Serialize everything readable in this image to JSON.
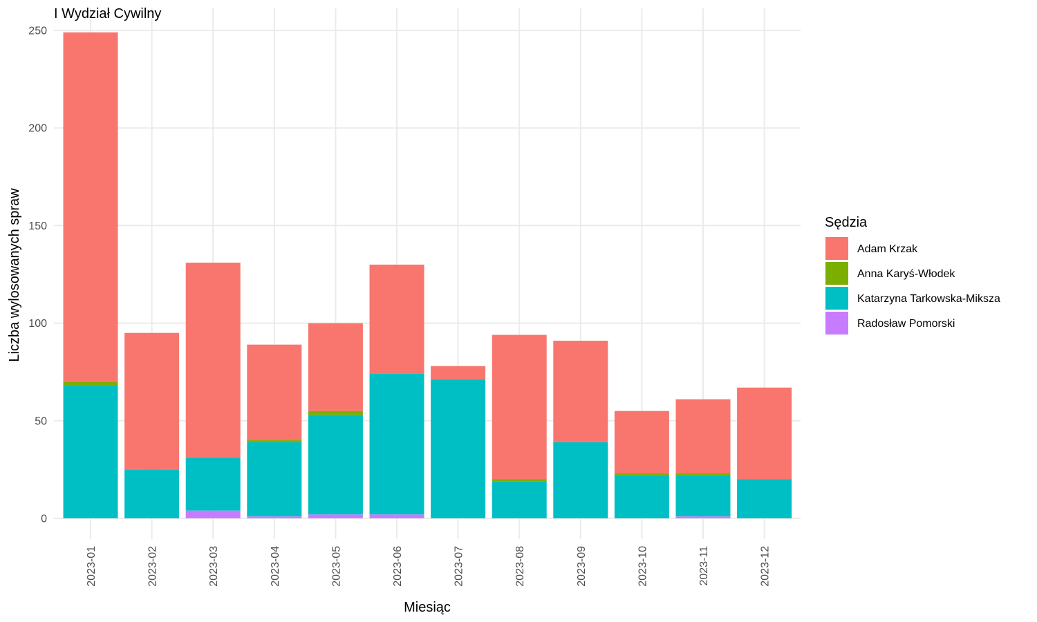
{
  "chart_data": {
    "type": "bar",
    "stacked": true,
    "title": "I Wydział Cywilny",
    "xlabel": "Miesiąc",
    "ylabel": "Liczba wylosowanych spraw",
    "ylim": [
      0,
      250
    ],
    "y_ticks": [
      "0",
      "50",
      "100",
      "150",
      "200",
      "250"
    ],
    "grid": true,
    "legend": {
      "title": "Sędzia",
      "position": "right"
    },
    "categories": [
      "2023-01",
      "2023-02",
      "2023-03",
      "2023-04",
      "2023-05",
      "2023-06",
      "2023-07",
      "2023-08",
      "2023-09",
      "2023-10",
      "2023-11",
      "2023-12"
    ],
    "series": [
      {
        "name": "Radosław Pomorski",
        "color": "#C77CFF",
        "values": [
          0,
          0,
          4,
          1,
          2,
          2,
          0,
          0,
          0,
          0,
          1,
          0
        ]
      },
      {
        "name": "Katarzyna Tarkowska-Miksza",
        "color": "#00BFC4",
        "values": [
          68,
          25,
          27,
          38,
          51,
          72,
          71,
          19,
          39,
          22,
          21,
          20
        ]
      },
      {
        "name": "Anna Karyś-Włodek",
        "color": "#7CAE00",
        "values": [
          2,
          0,
          0,
          1,
          2,
          0,
          0,
          1,
          0,
          1,
          1,
          0
        ]
      },
      {
        "name": "Adam Krzak",
        "color": "#F8766D",
        "values": [
          179,
          70,
          100,
          49,
          45,
          56,
          7,
          74,
          52,
          32,
          38,
          47
        ]
      }
    ],
    "legend_order": [
      "Adam Krzak",
      "Anna Karyś-Włodek",
      "Katarzyna Tarkowska-Miksza",
      "Radosław Pomorski"
    ]
  }
}
